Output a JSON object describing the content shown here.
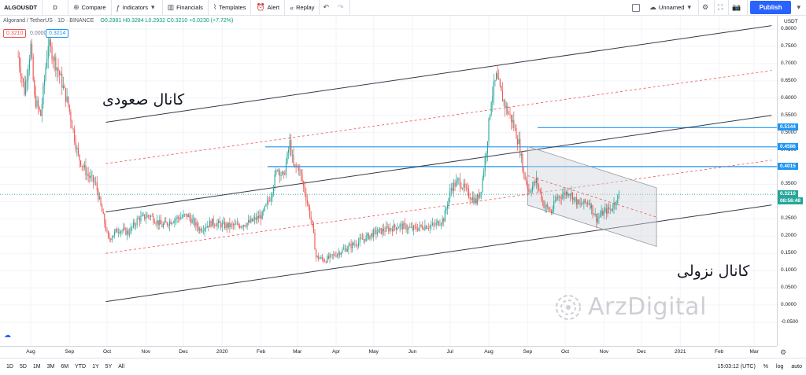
{
  "toolbar": {
    "symbol": "ALGOUSDT",
    "interval": "D",
    "compare": "Compare",
    "indicators": "Indicators",
    "financials": "Financials",
    "templates": "Templates",
    "alert": "Alert",
    "replay": "Replay",
    "layout_name": "Unnamed",
    "publish": "Publish"
  },
  "legend": {
    "title": "Algorand / TetherUS · 1D · BINANCE",
    "ohlc": "O0.2981 H0.3284 L0.2932 C0.3210 +0.0230 (+7.72%)",
    "price_left": "0.3210",
    "price_mid": "0.0000",
    "price_right": "0.3214"
  },
  "price_axis": {
    "currency": "USDT",
    "ticks": [
      "0.8000",
      "0.7500",
      "0.7000",
      "0.6500",
      "0.6000",
      "0.5500",
      "0.5000",
      "0.4500",
      "0.4000",
      "0.3500",
      "0.3000",
      "0.2500",
      "0.2000",
      "0.1500",
      "0.1000",
      "0.0500",
      "0.0000",
      "-0.0500"
    ],
    "labels": [
      {
        "text": "0.5144",
        "color": "#2196f3",
        "value": 0.5144
      },
      {
        "text": "0.4586",
        "color": "#2196f3",
        "value": 0.4586
      },
      {
        "text": "0.4015",
        "color": "#2196f3",
        "value": 0.4015
      },
      {
        "text": "0.3210",
        "color": "#26a69a",
        "value": 0.321
      },
      {
        "text": "08:56:48",
        "color": "#26a69a",
        "value": 0.3
      }
    ]
  },
  "time_axis": {
    "ticks": [
      {
        "label": "Aug",
        "day": 0
      },
      {
        "label": "Sep",
        "day": 31
      },
      {
        "label": "Oct",
        "day": 61
      },
      {
        "label": "Nov",
        "day": 92
      },
      {
        "label": "Dec",
        "day": 122
      },
      {
        "label": "2020",
        "day": 153
      },
      {
        "label": "Feb",
        "day": 184
      },
      {
        "label": "Mar",
        "day": 213
      },
      {
        "label": "Apr",
        "day": 244
      },
      {
        "label": "May",
        "day": 274
      },
      {
        "label": "Jun",
        "day": 305
      },
      {
        "label": "Jul",
        "day": 335
      },
      {
        "label": "Aug",
        "day": 366
      },
      {
        "label": "Sep",
        "day": 397
      },
      {
        "label": "Oct",
        "day": 427
      },
      {
        "label": "Nov",
        "day": 458
      },
      {
        "label": "Dec",
        "day": 488
      },
      {
        "label": "2021",
        "day": 519
      },
      {
        "label": "Feb",
        "day": 550
      },
      {
        "label": "Mar",
        "day": 578
      }
    ]
  },
  "annotations": {
    "ascending_channel": "کانال صعودی",
    "descending_channel": "کانال نزولی"
  },
  "watermark": "ArzDigital",
  "bottom_bar": {
    "ranges": [
      "1D",
      "5D",
      "1M",
      "3M",
      "6M",
      "YTD",
      "1Y",
      "5Y",
      "All"
    ],
    "time": "15:03:12 (UTC)",
    "percent": "%",
    "log": "log",
    "auto": "auto"
  },
  "colors": {
    "up": "#26a69a",
    "down": "#ef5350",
    "channel": "#363a45",
    "midline": "#ef5350",
    "level": "#2196f3",
    "box": "#d1d4dc",
    "accent": "#2962ff"
  },
  "chart_data": {
    "type": "candlestick",
    "symbol": "ALGOUSDT",
    "interval": "1D",
    "price_range": [
      -0.05,
      0.8
    ],
    "horizontal_levels": [
      0.5144,
      0.4586,
      0.4015
    ],
    "current_price": 0.321,
    "close_path": [
      {
        "day": -10,
        "price": 0.72
      },
      {
        "day": -5,
        "price": 0.62
      },
      {
        "day": 0,
        "price": 0.75
      },
      {
        "day": 3,
        "price": 0.6
      },
      {
        "day": 8,
        "price": 0.55
      },
      {
        "day": 14,
        "price": 0.76
      },
      {
        "day": 22,
        "price": 0.68
      },
      {
        "day": 30,
        "price": 0.58
      },
      {
        "day": 38,
        "price": 0.43
      },
      {
        "day": 45,
        "price": 0.38
      },
      {
        "day": 52,
        "price": 0.35
      },
      {
        "day": 57,
        "price": 0.27
      },
      {
        "day": 62,
        "price": 0.19
      },
      {
        "day": 70,
        "price": 0.22
      },
      {
        "day": 78,
        "price": 0.21
      },
      {
        "day": 86,
        "price": 0.25
      },
      {
        "day": 95,
        "price": 0.26
      },
      {
        "day": 105,
        "price": 0.23
      },
      {
        "day": 115,
        "price": 0.25
      },
      {
        "day": 125,
        "price": 0.26
      },
      {
        "day": 135,
        "price": 0.22
      },
      {
        "day": 145,
        "price": 0.24
      },
      {
        "day": 155,
        "price": 0.23
      },
      {
        "day": 165,
        "price": 0.23
      },
      {
        "day": 175,
        "price": 0.24
      },
      {
        "day": 185,
        "price": 0.26
      },
      {
        "day": 192,
        "price": 0.32
      },
      {
        "day": 197,
        "price": 0.4
      },
      {
        "day": 202,
        "price": 0.37
      },
      {
        "day": 207,
        "price": 0.47
      },
      {
        "day": 210,
        "price": 0.4
      },
      {
        "day": 214,
        "price": 0.4
      },
      {
        "day": 219,
        "price": 0.33
      },
      {
        "day": 225,
        "price": 0.23
      },
      {
        "day": 228,
        "price": 0.14
      },
      {
        "day": 235,
        "price": 0.13
      },
      {
        "day": 245,
        "price": 0.15
      },
      {
        "day": 255,
        "price": 0.17
      },
      {
        "day": 265,
        "price": 0.19
      },
      {
        "day": 275,
        "price": 0.21
      },
      {
        "day": 285,
        "price": 0.22
      },
      {
        "day": 295,
        "price": 0.23
      },
      {
        "day": 305,
        "price": 0.22
      },
      {
        "day": 315,
        "price": 0.23
      },
      {
        "day": 322,
        "price": 0.23
      },
      {
        "day": 330,
        "price": 0.25
      },
      {
        "day": 336,
        "price": 0.34
      },
      {
        "day": 342,
        "price": 0.36
      },
      {
        "day": 350,
        "price": 0.32
      },
      {
        "day": 356,
        "price": 0.3
      },
      {
        "day": 360,
        "price": 0.34
      },
      {
        "day": 364,
        "price": 0.45
      },
      {
        "day": 368,
        "price": 0.6
      },
      {
        "day": 372,
        "price": 0.66
      },
      {
        "day": 376,
        "price": 0.61
      },
      {
        "day": 380,
        "price": 0.57
      },
      {
        "day": 385,
        "price": 0.53
      },
      {
        "day": 390,
        "price": 0.47
      },
      {
        "day": 394,
        "price": 0.38
      },
      {
        "day": 398,
        "price": 0.33
      },
      {
        "day": 404,
        "price": 0.36
      },
      {
        "day": 410,
        "price": 0.29
      },
      {
        "day": 416,
        "price": 0.27
      },
      {
        "day": 420,
        "price": 0.31
      },
      {
        "day": 430,
        "price": 0.33
      },
      {
        "day": 438,
        "price": 0.29
      },
      {
        "day": 446,
        "price": 0.3
      },
      {
        "day": 452,
        "price": 0.25
      },
      {
        "day": 458,
        "price": 0.27
      },
      {
        "day": 464,
        "price": 0.28
      },
      {
        "day": 470,
        "price": 0.32
      }
    ],
    "channels": [
      {
        "name": "ascending",
        "lines": [
          {
            "kind": "upper",
            "from": {
              "day": 60,
              "price": 0.53
            },
            "to": {
              "day": 592,
              "price": 0.81
            }
          },
          {
            "kind": "mid",
            "from": {
              "day": 60,
              "price": 0.41
            },
            "to": {
              "day": 592,
              "price": 0.68
            }
          },
          {
            "kind": "lower",
            "from": {
              "day": 60,
              "price": 0.27
            },
            "to": {
              "day": 592,
              "price": 0.55
            }
          },
          {
            "kind": "mid",
            "from": {
              "day": 60,
              "price": 0.15
            },
            "to": {
              "day": 592,
              "price": 0.42
            }
          },
          {
            "kind": "support",
            "from": {
              "day": 60,
              "price": 0.01
            },
            "to": {
              "day": 592,
              "price": 0.29
            }
          }
        ]
      },
      {
        "name": "descending",
        "upper": {
          "from": {
            "day": 397,
            "price": 0.46
          },
          "to": {
            "day": 500,
            "price": 0.34
          }
        },
        "lower": {
          "from": {
            "day": 397,
            "price": 0.29
          },
          "to": {
            "day": 500,
            "price": 0.17
          }
        },
        "mid": {
          "from": {
            "day": 397,
            "price": 0.375
          },
          "to": {
            "day": 500,
            "price": 0.255
          }
        }
      }
    ]
  }
}
